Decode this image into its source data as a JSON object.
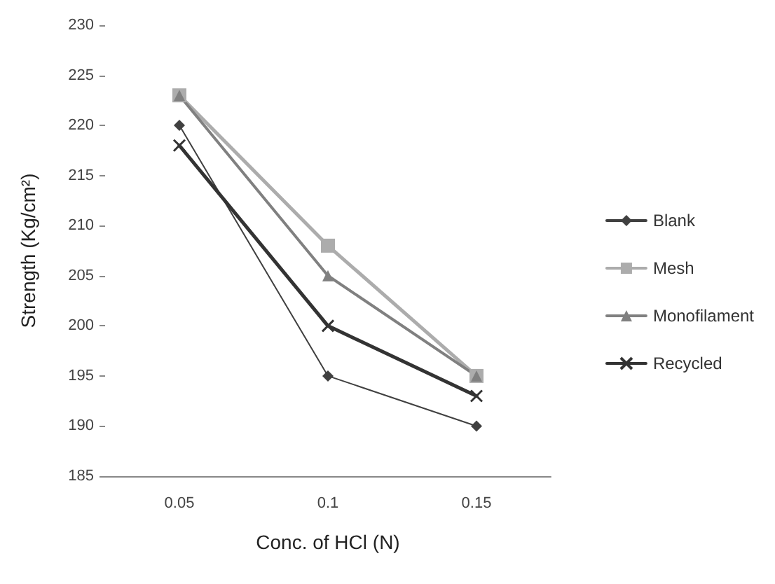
{
  "chart_data": {
    "type": "line",
    "xlabel": "Conc. of HCl (N)",
    "ylabel": "Strength (Kg/cm²)",
    "categories": [
      "0.05",
      "0.1",
      "0.15"
    ],
    "series": [
      {
        "name": "Blank",
        "color": "#404040",
        "marker": "diamond",
        "values": [
          220,
          195,
          190
        ]
      },
      {
        "name": "Mesh",
        "color": "#acacac",
        "marker": "square",
        "values": [
          223,
          208,
          195
        ]
      },
      {
        "name": "Monofilament",
        "color": "#808080",
        "marker": "triangle",
        "values": [
          223,
          205,
          195
        ]
      },
      {
        "name": "Recycled",
        "color": "#333333",
        "marker": "cross",
        "values": [
          218,
          200,
          193
        ]
      }
    ],
    "ylim": [
      185,
      230
    ],
    "yticks": [
      185,
      190,
      195,
      200,
      205,
      210,
      215,
      220,
      225,
      230
    ],
    "grid": false,
    "legend": "right"
  }
}
